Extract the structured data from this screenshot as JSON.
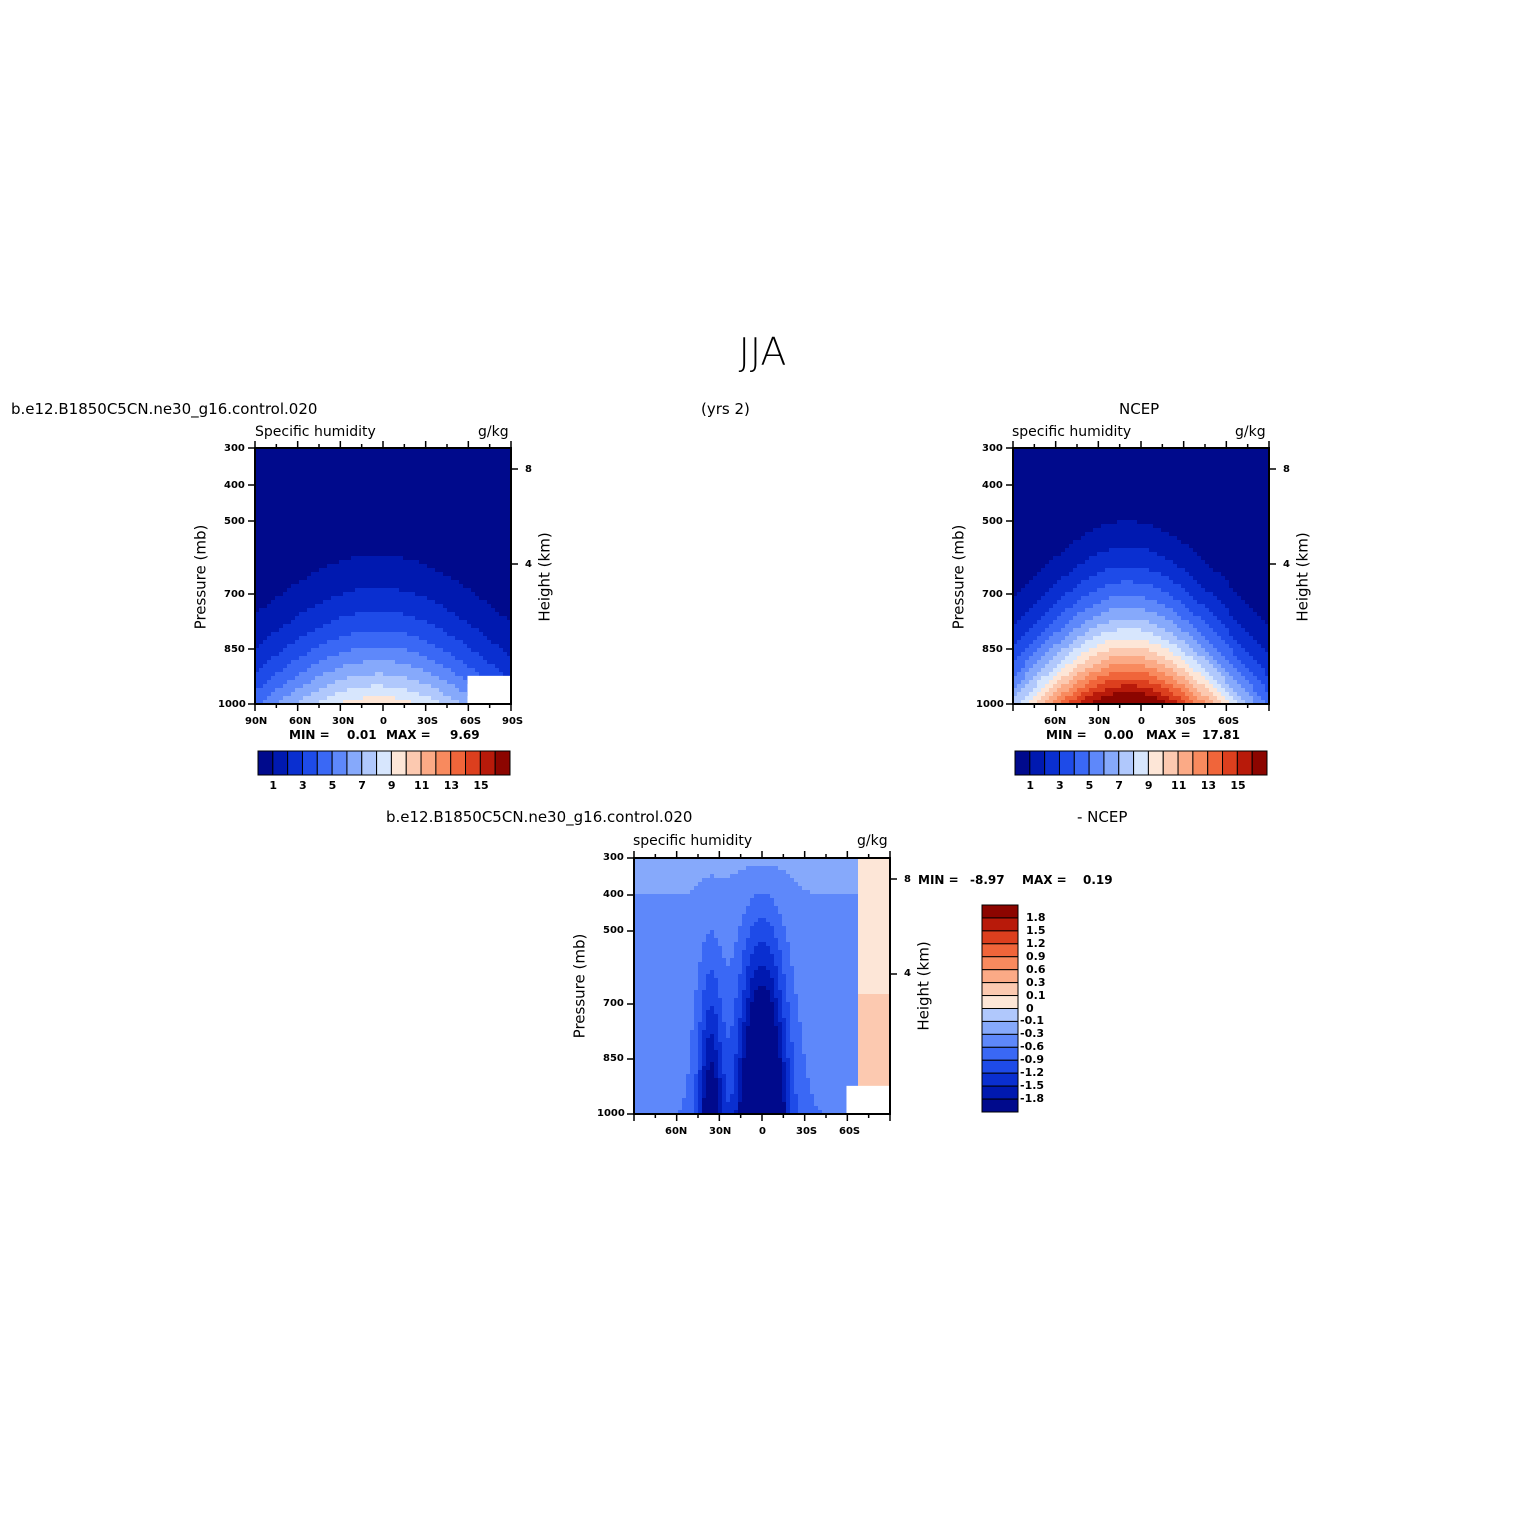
{
  "title": "JJA",
  "colors": {
    "scale": [
      "#000a8c",
      "#0019b0",
      "#0a2fd0",
      "#1e4be8",
      "#3a68f5",
      "#5e88fa",
      "#86a9fb",
      "#b0c8fc",
      "#d7e6fd",
      "#fde6d7",
      "#fcc9b0",
      "#fbaa86",
      "#f88a5e",
      "#f0653a",
      "#dc3f1e",
      "#b81a0a",
      "#8c0500"
    ]
  },
  "chart_data": [
    {
      "type": "heatmap",
      "left_title": "b.e12.B1850C5CN.ne30_g16.control.020",
      "center_title": "(yrs 2)",
      "subtitle_left": "Specific humidity",
      "subtitle_right": "g/kg",
      "ylabel": "Pressure (mb)",
      "right_ylabel": "Height (km)",
      "y_ticks": [
        "300",
        "400",
        "500",
        "700",
        "850",
        "1000"
      ],
      "x_ticks": [
        "90N",
        "60N",
        "30N",
        "0",
        "30S",
        "60S",
        "90S"
      ],
      "right_ticks": [
        "8",
        "4"
      ],
      "min_label": "MIN =",
      "min_value": "0.01",
      "max_label": "MAX =",
      "max_value": "9.69",
      "levels": [
        "1",
        "3",
        "5",
        "7",
        "9",
        "11",
        "13",
        "15"
      ],
      "x": [
        -90,
        -60,
        -30,
        0,
        30,
        60,
        90
      ],
      "peak_value": 9.69,
      "peak_lat": -2
    },
    {
      "type": "heatmap",
      "left_title": "",
      "center_title": "NCEP",
      "subtitle_left": "specific humidity",
      "subtitle_right": "g/kg",
      "ylabel": "Pressure (mb)",
      "right_ylabel": "Height (km)",
      "y_ticks": [
        "300",
        "400",
        "500",
        "700",
        "850",
        "1000"
      ],
      "x_ticks": [
        "60N",
        "30N",
        "0",
        "30S",
        "60S"
      ],
      "right_ticks": [
        "8",
        "4"
      ],
      "min_label": "MIN =",
      "min_value": "0.00",
      "max_label": "MAX =",
      "max_value": "17.81",
      "levels": [
        "1",
        "3",
        "5",
        "7",
        "9",
        "11",
        "13",
        "15"
      ],
      "peak_value": 17.81,
      "peak_lat": 6
    },
    {
      "type": "heatmap",
      "left_title": "b.e12.B1850C5CN.ne30_g16.control.020",
      "center_title": "- NCEP",
      "subtitle_left": "specific humidity",
      "subtitle_right": "g/kg",
      "ylabel": "Pressure (mb)",
      "right_ylabel": "Height (km)",
      "y_ticks": [
        "300",
        "400",
        "500",
        "700",
        "850",
        "1000"
      ],
      "x_ticks": [
        "60N",
        "30N",
        "0",
        "30S",
        "60S"
      ],
      "right_ticks": [
        "8",
        "4"
      ],
      "min_label": "MIN =",
      "min_value": "-8.97",
      "max_label": "MAX =",
      "max_value": "0.19",
      "levels": [
        "1.8",
        "1.5",
        "1.2",
        "0.9",
        "0.6",
        "0.3",
        "0.1",
        "0",
        "-0.1",
        "-0.3",
        "-0.6",
        "-0.9",
        "-1.2",
        "-1.5",
        "-1.8"
      ]
    }
  ]
}
